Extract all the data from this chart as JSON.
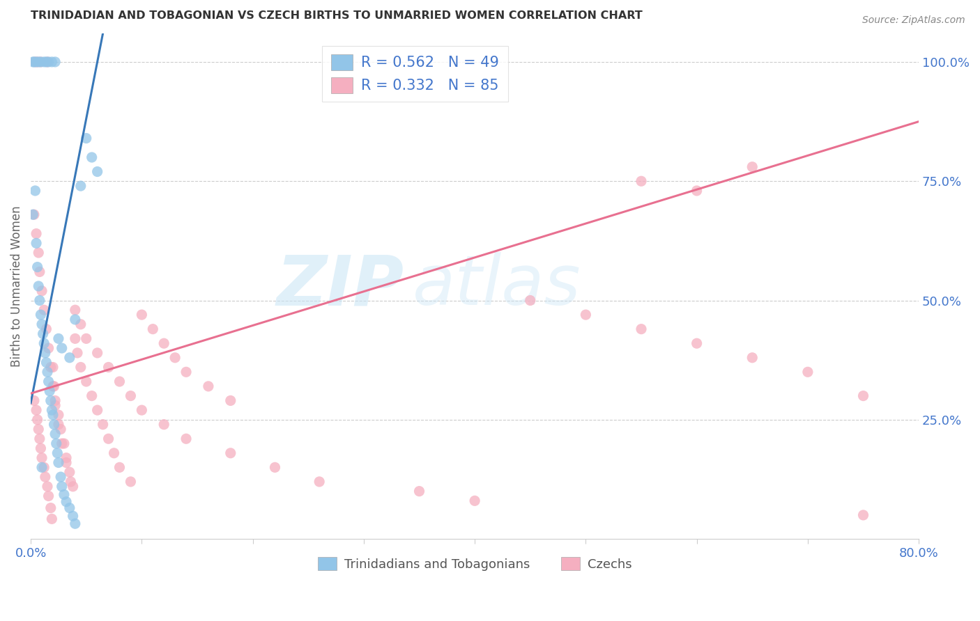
{
  "title": "TRINIDADIAN AND TOBAGONIAN VS CZECH BIRTHS TO UNMARRIED WOMEN CORRELATION CHART",
  "source": "Source: ZipAtlas.com",
  "ylabel": "Births to Unmarried Women",
  "legend_blue_label": "R = 0.562   N = 49",
  "legend_pink_label": "R = 0.332   N = 85",
  "legend_label_blue": "Trinidadians and Tobagonians",
  "legend_label_pink": "Czechs",
  "watermark_zip": "ZIP",
  "watermark_atlas": "atlas",
  "blue_color": "#92c5e8",
  "pink_color": "#f5afc0",
  "blue_line_color": "#3878b8",
  "pink_line_color": "#e87090",
  "legend_text_color": "#4477cc",
  "title_color": "#333333",
  "right_tick_color": "#4477cc",
  "xlim": [
    0.0,
    0.8
  ],
  "ylim": [
    0.0,
    1.06
  ],
  "blue_scatter_x": [
    0.002,
    0.004,
    0.005,
    0.006,
    0.007,
    0.008,
    0.009,
    0.01,
    0.011,
    0.012,
    0.013,
    0.014,
    0.015,
    0.016,
    0.017,
    0.018,
    0.019,
    0.02,
    0.021,
    0.022,
    0.023,
    0.024,
    0.025,
    0.027,
    0.028,
    0.03,
    0.032,
    0.035,
    0.038,
    0.04,
    0.002,
    0.003,
    0.005,
    0.007,
    0.009,
    0.012,
    0.014,
    0.016,
    0.019,
    0.022,
    0.025,
    0.028,
    0.035,
    0.04,
    0.05,
    0.055,
    0.06,
    0.045,
    0.01
  ],
  "blue_scatter_y": [
    0.68,
    0.73,
    0.62,
    0.57,
    0.53,
    0.5,
    0.47,
    0.45,
    0.43,
    0.41,
    0.39,
    0.37,
    0.35,
    0.33,
    0.31,
    0.29,
    0.27,
    0.26,
    0.24,
    0.22,
    0.2,
    0.18,
    0.16,
    0.13,
    0.11,
    0.093,
    0.078,
    0.065,
    0.048,
    0.032,
    1.0,
    1.0,
    1.0,
    1.0,
    1.0,
    1.0,
    1.0,
    1.0,
    1.0,
    1.0,
    0.42,
    0.4,
    0.38,
    0.46,
    0.84,
    0.8,
    0.77,
    0.74,
    0.15
  ],
  "pink_scatter_x": [
    0.003,
    0.005,
    0.006,
    0.007,
    0.008,
    0.009,
    0.01,
    0.012,
    0.013,
    0.015,
    0.016,
    0.018,
    0.019,
    0.02,
    0.021,
    0.022,
    0.025,
    0.027,
    0.03,
    0.032,
    0.035,
    0.038,
    0.04,
    0.042,
    0.045,
    0.05,
    0.055,
    0.06,
    0.065,
    0.07,
    0.075,
    0.08,
    0.09,
    0.1,
    0.11,
    0.12,
    0.13,
    0.14,
    0.16,
    0.18,
    0.003,
    0.005,
    0.007,
    0.008,
    0.01,
    0.012,
    0.014,
    0.016,
    0.018,
    0.02,
    0.022,
    0.025,
    0.028,
    0.032,
    0.036,
    0.04,
    0.045,
    0.05,
    0.06,
    0.07,
    0.08,
    0.09,
    0.1,
    0.12,
    0.14,
    0.18,
    0.22,
    0.26,
    0.35,
    0.4,
    0.45,
    0.5,
    0.55,
    0.6,
    0.65,
    0.7,
    0.55,
    0.6,
    0.65,
    0.75,
    0.004,
    0.006,
    0.009,
    0.015,
    0.75
  ],
  "pink_scatter_y": [
    0.29,
    0.27,
    0.25,
    0.23,
    0.21,
    0.19,
    0.17,
    0.15,
    0.13,
    0.11,
    0.09,
    0.065,
    0.042,
    0.36,
    0.32,
    0.29,
    0.26,
    0.23,
    0.2,
    0.17,
    0.14,
    0.11,
    0.42,
    0.39,
    0.36,
    0.33,
    0.3,
    0.27,
    0.24,
    0.21,
    0.18,
    0.15,
    0.12,
    0.47,
    0.44,
    0.41,
    0.38,
    0.35,
    0.32,
    0.29,
    0.68,
    0.64,
    0.6,
    0.56,
    0.52,
    0.48,
    0.44,
    0.4,
    0.36,
    0.32,
    0.28,
    0.24,
    0.2,
    0.16,
    0.12,
    0.48,
    0.45,
    0.42,
    0.39,
    0.36,
    0.33,
    0.3,
    0.27,
    0.24,
    0.21,
    0.18,
    0.15,
    0.12,
    0.1,
    0.08,
    0.5,
    0.47,
    0.44,
    0.41,
    0.38,
    0.35,
    0.75,
    0.73,
    0.78,
    0.05,
    1.0,
    1.0,
    1.0,
    1.0,
    0.3
  ],
  "blue_line_x": [
    0.0,
    0.065
  ],
  "blue_line_y": [
    0.285,
    1.06
  ],
  "pink_line_x": [
    0.0,
    0.8
  ],
  "pink_line_y": [
    0.305,
    0.875
  ],
  "xticks": [
    0.0,
    0.1,
    0.2,
    0.3,
    0.4,
    0.5,
    0.6,
    0.7,
    0.8
  ],
  "xtick_labels_show": [
    "0.0%",
    "",
    "",
    "",
    "",
    "",
    "",
    "",
    "80.0%"
  ],
  "yticks_right": [
    0.25,
    0.5,
    0.75,
    1.0
  ],
  "ytick_right_labels": [
    "25.0%",
    "50.0%",
    "75.0%",
    "100.0%"
  ]
}
